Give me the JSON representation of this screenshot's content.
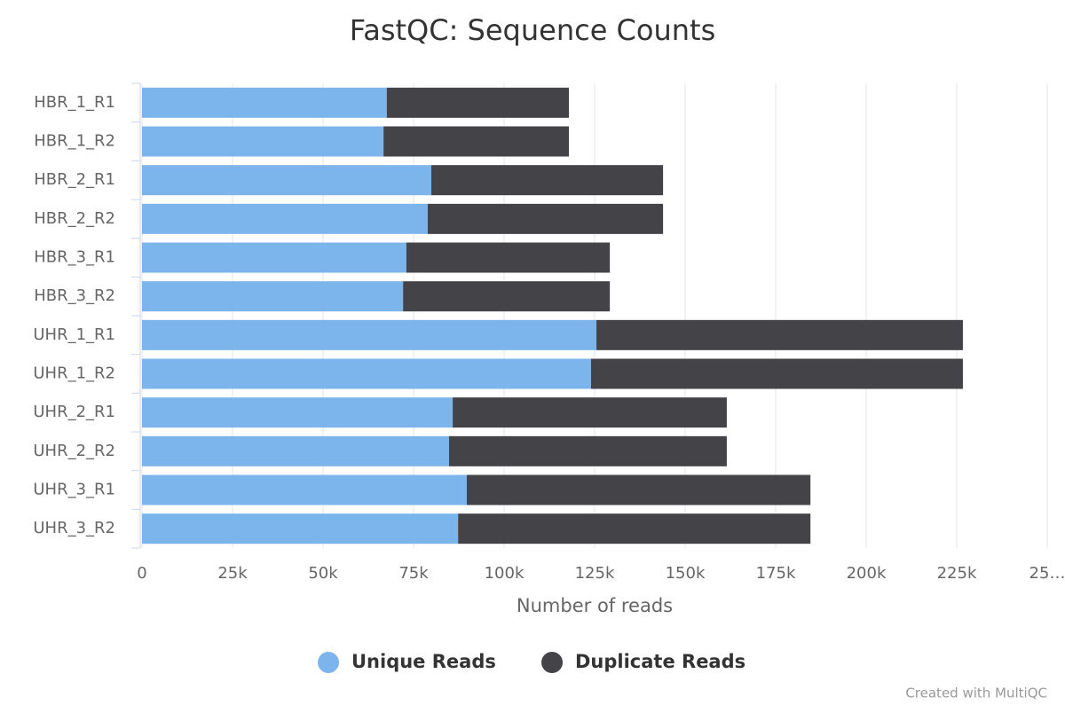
{
  "chart_data": {
    "type": "bar",
    "orientation": "horizontal",
    "stacked": true,
    "title": "FastQC: Sequence Counts",
    "x_label": "Number of reads",
    "credit": "Created with MultiQC",
    "categories": [
      "HBR_1_R1",
      "HBR_1_R2",
      "HBR_2_R1",
      "HBR_2_R2",
      "HBR_3_R1",
      "HBR_3_R2",
      "UHR_1_R1",
      "UHR_1_R2",
      "UHR_2_R1",
      "UHR_2_R2",
      "UHR_3_R1",
      "UHR_3_R2"
    ],
    "series": [
      {
        "name": "Unique Reads",
        "color": "#7cb5ec",
        "values": [
          67600,
          66700,
          79900,
          78900,
          73000,
          72100,
          125500,
          124000,
          85800,
          84800,
          89700,
          87300
        ]
      },
      {
        "name": "Duplicate Reads",
        "color": "#434348",
        "values": [
          50300,
          51200,
          64000,
          65000,
          56200,
          57100,
          101200,
          102700,
          75700,
          76700,
          94900,
          97300
        ]
      }
    ],
    "xlim": [
      0,
      250000
    ],
    "xticks": [
      0,
      {
        "value": 25000,
        "label": "25k"
      },
      {
        "value": 50000,
        "label": "50k"
      },
      {
        "value": 75000,
        "label": "75k"
      },
      {
        "value": 100000,
        "label": "100k"
      },
      {
        "value": 125000,
        "label": "125k"
      },
      {
        "value": 150000,
        "label": "150k"
      },
      {
        "value": 175000,
        "label": "175k"
      },
      {
        "value": 200000,
        "label": "200k"
      },
      {
        "value": 225000,
        "label": "225k"
      },
      {
        "value": 250000,
        "label": "25…"
      }
    ],
    "grid": true,
    "legend": "bottom"
  }
}
